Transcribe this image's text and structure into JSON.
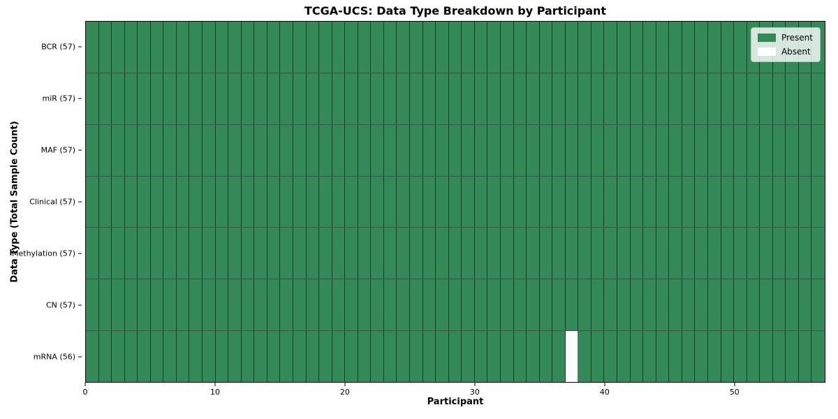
{
  "chart_data": {
    "type": "heatmap",
    "title": "TCGA-UCS: Data Type Breakdown by Participant",
    "xlabel": "Participant",
    "ylabel": "Data Type (Total Sample Count)",
    "n_participants": 57,
    "xlim": [
      0,
      57
    ],
    "x_ticks": [
      0,
      10,
      20,
      30,
      40,
      50
    ],
    "rows": [
      {
        "label": "BCR (57)",
        "data_type": "BCR",
        "count": 57,
        "absent_participants": []
      },
      {
        "label": "miR (57)",
        "data_type": "miR",
        "count": 57,
        "absent_participants": []
      },
      {
        "label": "MAF (57)",
        "data_type": "MAF",
        "count": 57,
        "absent_participants": []
      },
      {
        "label": "Clinical (57)",
        "data_type": "Clinical",
        "count": 57,
        "absent_participants": []
      },
      {
        "label": "Methylation (57)",
        "data_type": "Methylation",
        "count": 57,
        "absent_participants": []
      },
      {
        "label": "CN (57)",
        "data_type": "CN",
        "count": 57,
        "absent_participants": []
      },
      {
        "label": "mRNA (56)",
        "data_type": "mRNA",
        "count": 56,
        "absent_participants": [
          37
        ]
      }
    ],
    "legend": [
      {
        "label": "Present",
        "color": "#338a58"
      },
      {
        "label": "Absent",
        "color": "#ffffff"
      }
    ],
    "colors": {
      "present": "#338a58",
      "absent": "#ffffff",
      "grid_on": false
    },
    "legend_position": "upper right"
  }
}
